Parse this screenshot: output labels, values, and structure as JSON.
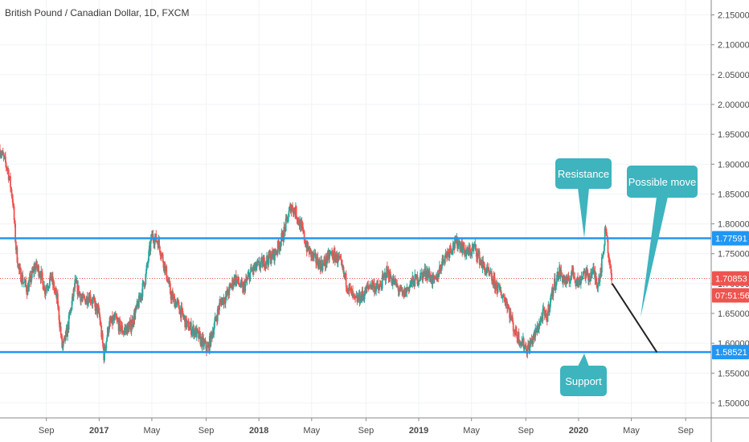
{
  "chart_data": {
    "type": "candlestick",
    "title": "British Pound / Canadian Dollar, 1D, FXCM",
    "y_ticks": [
      "2.15000",
      "2.10000",
      "2.05000",
      "2.00000",
      "1.95000",
      "1.90000",
      "1.85000",
      "1.80000",
      "1.75000",
      "1.70000",
      "1.65000",
      "1.60000",
      "1.55000",
      "1.50000"
    ],
    "y_tick_values": [
      2.15,
      2.1,
      2.05,
      2.0,
      1.95,
      1.9,
      1.85,
      1.8,
      1.75,
      1.7,
      1.65,
      1.6,
      1.55,
      1.5
    ],
    "ylim": [
      1.475,
      2.175
    ],
    "x_ticks": [
      {
        "label": "Sep",
        "t": 2016.67,
        "bold": false
      },
      {
        "label": "2017",
        "t": 2017.0,
        "bold": true
      },
      {
        "label": "May",
        "t": 2017.33,
        "bold": false
      },
      {
        "label": "Sep",
        "t": 2017.67,
        "bold": false
      },
      {
        "label": "2018",
        "t": 2018.0,
        "bold": true
      },
      {
        "label": "May",
        "t": 2018.33,
        "bold": false
      },
      {
        "label": "Sep",
        "t": 2018.67,
        "bold": false
      },
      {
        "label": "2019",
        "t": 2019.0,
        "bold": true
      },
      {
        "label": "May",
        "t": 2019.33,
        "bold": false
      },
      {
        "label": "Sep",
        "t": 2019.67,
        "bold": false
      },
      {
        "label": "2020",
        "t": 2020.0,
        "bold": true
      },
      {
        "label": "May",
        "t": 2020.33,
        "bold": false
      },
      {
        "label": "Sep",
        "t": 2020.67,
        "bold": false
      }
    ],
    "xlim": [
      2016.38,
      2020.83
    ],
    "price_path": [
      [
        2016.38,
        1.925
      ],
      [
        2016.43,
        1.89
      ],
      [
        2016.46,
        1.84
      ],
      [
        2016.48,
        1.76
      ],
      [
        2016.5,
        1.72
      ],
      [
        2016.55,
        1.69
      ],
      [
        2016.6,
        1.73
      ],
      [
        2016.63,
        1.72
      ],
      [
        2016.66,
        1.69
      ],
      [
        2016.7,
        1.71
      ],
      [
        2016.74,
        1.67
      ],
      [
        2016.77,
        1.59
      ],
      [
        2016.8,
        1.62
      ],
      [
        2016.85,
        1.7
      ],
      [
        2016.9,
        1.67
      ],
      [
        2016.94,
        1.68
      ],
      [
        2016.98,
        1.66
      ],
      [
        2017.0,
        1.65
      ],
      [
        2017.03,
        1.58
      ],
      [
        2017.06,
        1.63
      ],
      [
        2017.1,
        1.64
      ],
      [
        2017.15,
        1.62
      ],
      [
        2017.2,
        1.63
      ],
      [
        2017.25,
        1.67
      ],
      [
        2017.29,
        1.71
      ],
      [
        2017.33,
        1.78
      ],
      [
        2017.37,
        1.77
      ],
      [
        2017.41,
        1.73
      ],
      [
        2017.45,
        1.68
      ],
      [
        2017.5,
        1.66
      ],
      [
        2017.55,
        1.63
      ],
      [
        2017.6,
        1.62
      ],
      [
        2017.65,
        1.6
      ],
      [
        2017.68,
        1.59
      ],
      [
        2017.72,
        1.63
      ],
      [
        2017.76,
        1.67
      ],
      [
        2017.8,
        1.68
      ],
      [
        2017.85,
        1.71
      ],
      [
        2017.9,
        1.69
      ],
      [
        2017.95,
        1.72
      ],
      [
        2018.0,
        1.73
      ],
      [
        2018.05,
        1.74
      ],
      [
        2018.1,
        1.75
      ],
      [
        2018.15,
        1.78
      ],
      [
        2018.2,
        1.83
      ],
      [
        2018.23,
        1.82
      ],
      [
        2018.27,
        1.79
      ],
      [
        2018.3,
        1.76
      ],
      [
        2018.35,
        1.74
      ],
      [
        2018.4,
        1.73
      ],
      [
        2018.45,
        1.75
      ],
      [
        2018.5,
        1.74
      ],
      [
        2018.55,
        1.7
      ],
      [
        2018.6,
        1.67
      ],
      [
        2018.65,
        1.68
      ],
      [
        2018.7,
        1.7
      ],
      [
        2018.75,
        1.69
      ],
      [
        2018.8,
        1.72
      ],
      [
        2018.85,
        1.7
      ],
      [
        2018.9,
        1.68
      ],
      [
        2018.95,
        1.7
      ],
      [
        2019.0,
        1.71
      ],
      [
        2019.05,
        1.72
      ],
      [
        2019.1,
        1.7
      ],
      [
        2019.15,
        1.74
      ],
      [
        2019.2,
        1.76
      ],
      [
        2019.25,
        1.77
      ],
      [
        2019.3,
        1.75
      ],
      [
        2019.35,
        1.76
      ],
      [
        2019.4,
        1.73
      ],
      [
        2019.45,
        1.71
      ],
      [
        2019.5,
        1.69
      ],
      [
        2019.55,
        1.67
      ],
      [
        2019.6,
        1.62
      ],
      [
        2019.65,
        1.6
      ],
      [
        2019.68,
        1.59
      ],
      [
        2019.72,
        1.61
      ],
      [
        2019.75,
        1.63
      ],
      [
        2019.78,
        1.65
      ],
      [
        2019.8,
        1.64
      ],
      [
        2019.82,
        1.67
      ],
      [
        2019.85,
        1.7
      ],
      [
        2019.88,
        1.72
      ],
      [
        2019.9,
        1.71
      ],
      [
        2019.93,
        1.7
      ],
      [
        2019.96,
        1.72
      ],
      [
        2020.0,
        1.7
      ],
      [
        2020.03,
        1.72
      ],
      [
        2020.06,
        1.71
      ],
      [
        2020.09,
        1.72
      ],
      [
        2020.12,
        1.7
      ],
      [
        2020.15,
        1.74
      ],
      [
        2020.17,
        1.8
      ],
      [
        2020.19,
        1.74
      ],
      [
        2020.21,
        1.7
      ]
    ],
    "resistance_level": 1.77591,
    "support_level": 1.58521,
    "current_price": 1.70853,
    "labels": {
      "resistance_tag": "1.77591",
      "current_tag": "1.70853",
      "countdown_tag": "07:51:56",
      "support_tag": "1.58521"
    },
    "annotations": {
      "resistance": "Resistance",
      "support": "Support",
      "possible_move": "Possible move"
    },
    "projection": {
      "from": [
        2020.21,
        1.7
      ],
      "to": [
        2020.49,
        1.585
      ]
    },
    "colors": {
      "up": "#26a69a",
      "down": "#ef5350",
      "level_line": "#2196f3",
      "current_line": "#ef5350",
      "callout": "#3db4be",
      "projection": "#222222"
    }
  }
}
